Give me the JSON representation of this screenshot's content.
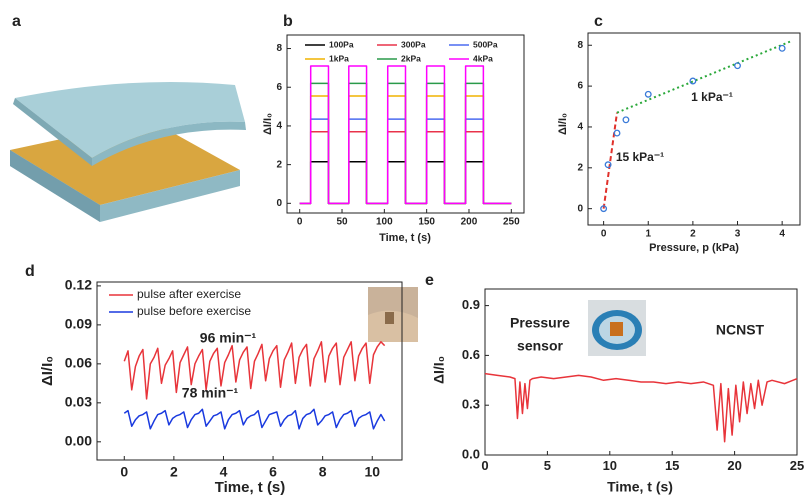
{
  "chart_data": [
    {
      "type": "illustration",
      "label": "a"
    },
    {
      "type": "line",
      "label": "b",
      "xlabel": "Time, t (s)",
      "ylabel": "ΔI/I₀",
      "x": [
        0,
        13,
        13,
        34,
        34,
        58,
        58,
        79,
        79,
        104,
        104,
        125,
        125,
        150,
        150,
        171,
        171,
        196,
        196,
        217,
        217,
        250
      ],
      "series": [
        {
          "name": "100Pa",
          "color": "#000000",
          "values": [
            0,
            0,
            2.15,
            2.15,
            0,
            0,
            2.15,
            2.15,
            0,
            0,
            2.15,
            2.15,
            0,
            0,
            2.15,
            2.15,
            0,
            0,
            2.15,
            2.15,
            0,
            0
          ]
        },
        {
          "name": "300Pa",
          "color": "#e8334a",
          "values": [
            0,
            0,
            3.7,
            3.7,
            0,
            0,
            3.7,
            3.7,
            0,
            0,
            3.7,
            3.7,
            0,
            0,
            3.7,
            3.7,
            0,
            0,
            3.7,
            3.7,
            0,
            0
          ]
        },
        {
          "name": "500Pa",
          "color": "#4b6bf0",
          "values": [
            0,
            0,
            4.35,
            4.35,
            0,
            0,
            4.35,
            4.35,
            0,
            0,
            4.35,
            4.35,
            0,
            0,
            4.35,
            4.35,
            0,
            0,
            4.35,
            4.35,
            0,
            0
          ]
        },
        {
          "name": "1kPa",
          "color": "#f0b400",
          "values": [
            0,
            0,
            5.55,
            5.55,
            0,
            0,
            5.55,
            5.55,
            0,
            0,
            5.55,
            5.55,
            0,
            0,
            5.55,
            5.55,
            0,
            0,
            5.55,
            5.55,
            0,
            0
          ]
        },
        {
          "name": "2kPa",
          "color": "#2a9a4a",
          "values": [
            0,
            0,
            6.2,
            6.2,
            0,
            0,
            6.2,
            6.2,
            0,
            0,
            6.2,
            6.2,
            0,
            0,
            6.2,
            6.2,
            0,
            0,
            6.2,
            6.2,
            0,
            0
          ]
        },
        {
          "name": "4kPa",
          "color": "#ff00ff",
          "values": [
            0,
            0,
            7.1,
            7.1,
            0,
            0,
            7.1,
            7.1,
            0,
            0,
            7.1,
            7.1,
            0,
            0,
            7.1,
            7.1,
            0,
            0,
            7.1,
            7.1,
            0,
            0
          ]
        }
      ],
      "xlim": [
        -15,
        265
      ],
      "xticks": [
        0,
        50,
        100,
        150,
        200,
        250
      ],
      "ylim": [
        -0.5,
        8.7
      ],
      "yticks": [
        0,
        2,
        4,
        6,
        8
      ],
      "legend": "top"
    },
    {
      "type": "scatter",
      "label": "c",
      "xlabel": "Pressure, p (kPa)",
      "ylabel": "ΔI/I₀",
      "points": {
        "color": "#3a7ad8",
        "x": [
          0,
          0.1,
          0.3,
          0.5,
          1,
          2,
          3,
          4
        ],
        "y": [
          0,
          2.15,
          3.7,
          4.35,
          5.6,
          6.25,
          7.0,
          7.85
        ]
      },
      "fits": [
        {
          "color": "#e0302a",
          "style": "dashed",
          "x": [
            0,
            0.3
          ],
          "y": [
            0,
            4.7
          ]
        },
        {
          "color": "#2aa83a",
          "style": "dotted",
          "x": [
            0.3,
            4.2
          ],
          "y": [
            4.7,
            8.2
          ]
        }
      ],
      "annotations": [
        "15 kPa⁻¹",
        "1 kPa⁻¹"
      ],
      "xlim": [
        -0.35,
        4.4
      ],
      "xticks": [
        0,
        1,
        2,
        3,
        4
      ],
      "ylim": [
        -0.8,
        8.6
      ],
      "yticks": [
        0,
        2,
        4,
        6,
        8
      ]
    },
    {
      "type": "line",
      "label": "d",
      "xlabel": "Time, t (s)",
      "ylabel": "ΔI/I₀",
      "x": [
        0,
        0.15,
        0.3,
        0.45,
        0.6,
        0.75,
        0.9,
        1.05,
        1.2,
        1.35,
        1.5,
        1.65,
        1.8,
        1.95,
        2.1,
        2.25,
        2.4,
        2.55,
        2.7,
        2.85,
        3,
        3.15,
        3.3,
        3.45,
        3.6,
        3.75,
        3.9,
        4.05,
        4.2,
        4.35,
        4.5,
        4.65,
        4.8,
        4.95,
        5.1,
        5.25,
        5.4,
        5.55,
        5.7,
        5.85,
        6,
        6.15,
        6.3,
        6.45,
        6.6,
        6.75,
        6.9,
        7.05,
        7.2,
        7.35,
        7.5,
        7.65,
        7.8,
        7.95,
        8.1,
        8.25,
        8.4,
        8.55,
        8.7,
        8.85,
        9,
        9.15,
        9.3,
        9.45,
        9.6,
        9.75,
        9.9,
        10.05,
        10.2,
        10.35,
        10.5
      ],
      "series": [
        {
          "name": "pulse after exercise",
          "color": "#e8343a",
          "values": [
            0.062,
            0.07,
            0.04,
            0.058,
            0.066,
            0.071,
            0.033,
            0.06,
            0.065,
            0.072,
            0.045,
            0.059,
            0.064,
            0.07,
            0.038,
            0.061,
            0.067,
            0.073,
            0.044,
            0.06,
            0.066,
            0.071,
            0.04,
            0.062,
            0.068,
            0.072,
            0.043,
            0.061,
            0.067,
            0.074,
            0.046,
            0.063,
            0.069,
            0.073,
            0.041,
            0.062,
            0.068,
            0.075,
            0.047,
            0.064,
            0.07,
            0.074,
            0.042,
            0.063,
            0.069,
            0.076,
            0.045,
            0.065,
            0.071,
            0.075,
            0.043,
            0.064,
            0.07,
            0.077,
            0.046,
            0.066,
            0.072,
            0.076,
            0.044,
            0.065,
            0.071,
            0.077,
            0.047,
            0.066,
            0.072,
            0.076,
            0.045,
            0.067,
            0.073,
            0.077,
            0.074
          ]
        },
        {
          "name": "pulse before exercise",
          "color": "#1a3adf",
          "values": [
            0.022,
            0.024,
            0.012,
            0.017,
            0.02,
            0.021,
            0.023,
            0.01,
            0.016,
            0.021,
            0.022,
            0.024,
            0.013,
            0.018,
            0.02,
            0.021,
            0.023,
            0.011,
            0.017,
            0.021,
            0.022,
            0.025,
            0.012,
            0.016,
            0.02,
            0.021,
            0.023,
            0.01,
            0.017,
            0.021,
            0.022,
            0.024,
            0.013,
            0.018,
            0.02,
            0.021,
            0.024,
            0.011,
            0.016,
            0.021,
            0.022,
            0.023,
            0.012,
            0.017,
            0.02,
            0.021,
            0.024,
            0.01,
            0.018,
            0.021,
            0.022,
            0.025,
            0.013,
            0.016,
            0.02,
            0.021,
            0.023,
            0.011,
            0.017,
            0.021,
            0.022,
            0.024,
            0.012,
            0.018,
            0.02,
            0.021,
            0.023,
            0.01,
            0.016,
            0.021,
            0.016
          ]
        }
      ],
      "annotations": [
        "96 min⁻¹",
        "78 min⁻¹"
      ],
      "xlim": [
        -1.1,
        11.2
      ],
      "xticks": [
        0,
        2,
        4,
        6,
        8,
        10
      ],
      "ylim": [
        -0.014,
        0.123
      ],
      "yticks": [
        {
          "value": 0,
          "label": "0.00"
        },
        0.03,
        0.06,
        0.09,
        0.12
      ],
      "legend": "top-left"
    },
    {
      "type": "line",
      "label": "e",
      "xlabel": "Time, t (s)",
      "ylabel": "ΔI/I₀",
      "x": [
        0,
        1,
        2,
        2.4,
        2.6,
        2.8,
        3.0,
        3.2,
        3.4,
        3.6,
        3.8,
        4.5,
        5.5,
        6.5,
        7.5,
        8.5,
        9.5,
        10.5,
        11.5,
        12.5,
        13.5,
        14.5,
        15.5,
        16.5,
        17.5,
        18.3,
        18.6,
        18.9,
        19.2,
        19.5,
        19.8,
        20.1,
        20.4,
        20.7,
        21.0,
        21.3,
        21.6,
        21.9,
        22.2,
        22.6,
        23,
        24,
        25
      ],
      "series": [
        {
          "color": "#e8343a",
          "values": [
            0.49,
            0.48,
            0.47,
            0.46,
            0.22,
            0.44,
            0.25,
            0.43,
            0.28,
            0.45,
            0.46,
            0.47,
            0.46,
            0.47,
            0.48,
            0.47,
            0.45,
            0.46,
            0.45,
            0.44,
            0.44,
            0.43,
            0.44,
            0.43,
            0.44,
            0.42,
            0.15,
            0.43,
            0.08,
            0.4,
            0.12,
            0.42,
            0.2,
            0.44,
            0.25,
            0.43,
            0.28,
            0.45,
            0.3,
            0.44,
            0.45,
            0.43,
            0.46
          ]
        }
      ],
      "annotations": [
        "Pressure",
        "sensor",
        "NCNST"
      ],
      "xlim": [
        0,
        25
      ],
      "xticks": [
        0,
        5,
        10,
        15,
        20,
        25
      ],
      "ylim": [
        0,
        1.0
      ],
      "yticks": [
        {
          "value": 0,
          "label": "0.0"
        },
        0.3,
        0.6,
        0.9
      ]
    }
  ]
}
